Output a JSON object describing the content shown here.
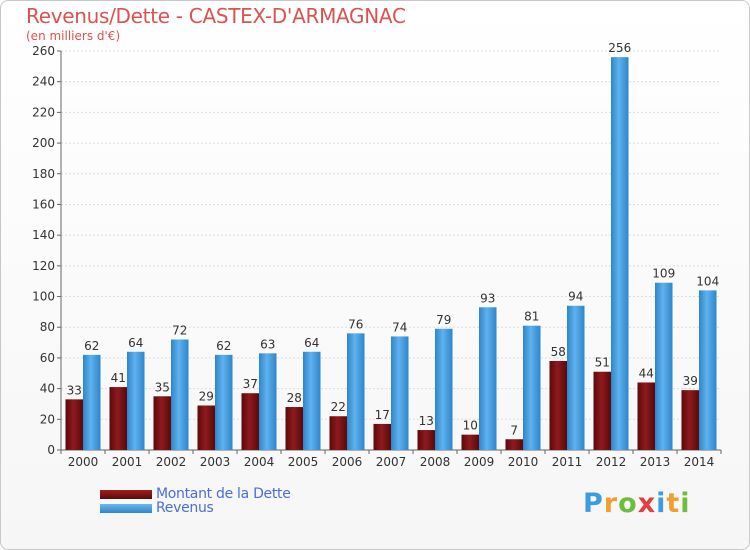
{
  "chart_data": {
    "type": "bar",
    "title": "Revenus/Dette - CASTEX-D'ARMAGNAC",
    "subtitle": "(en milliers d'€)",
    "categories": [
      "2000",
      "2001",
      "2002",
      "2003",
      "2004",
      "2005",
      "2006",
      "2007",
      "2008",
      "2009",
      "2010",
      "2011",
      "2012",
      "2013",
      "2014"
    ],
    "series": [
      {
        "name": "Montant de la Dette",
        "color": "#7a0f12",
        "values": [
          33,
          41,
          35,
          29,
          37,
          28,
          22,
          17,
          13,
          10,
          7,
          58,
          51,
          44,
          39
        ]
      },
      {
        "name": "Revenus",
        "color": "#3d9be0",
        "values": [
          62,
          64,
          72,
          62,
          63,
          64,
          76,
          74,
          79,
          93,
          81,
          94,
          256,
          109,
          104
        ]
      }
    ],
    "ylim": [
      0,
      260
    ],
    "yticks": [
      0,
      20,
      40,
      60,
      80,
      100,
      120,
      140,
      160,
      180,
      200,
      220,
      240,
      260
    ],
    "grid": true,
    "legend_position": "bottom-left"
  },
  "logo": {
    "text": "Proxiti",
    "letters": [
      "P",
      "r",
      "o",
      "x",
      "i",
      "t",
      "i"
    ],
    "colors": [
      "#3d9be0",
      "#f0a030",
      "#6bbf3a",
      "#e04040",
      "#3d9be0",
      "#f0a030",
      "#6bbf3a"
    ]
  }
}
